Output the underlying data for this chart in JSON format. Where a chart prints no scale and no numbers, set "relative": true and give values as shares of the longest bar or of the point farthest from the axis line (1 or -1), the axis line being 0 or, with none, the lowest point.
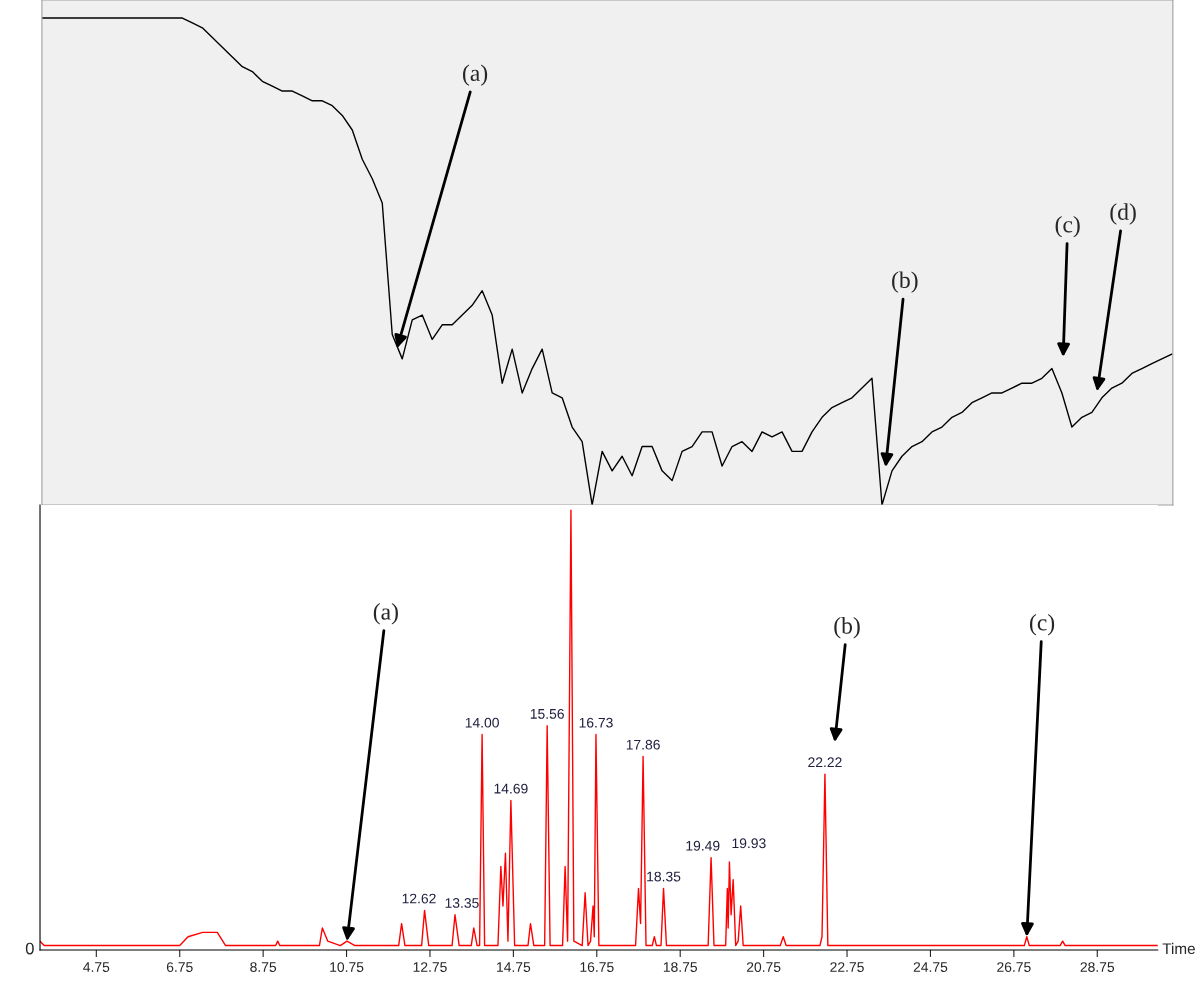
{
  "chart_data": [
    {
      "type": "line",
      "relative": true,
      "categories": [
        null,
        null,
        null,
        null,
        null,
        null,
        null,
        null,
        null,
        null,
        null,
        null,
        null,
        null,
        null,
        null,
        null,
        null,
        null,
        null,
        null,
        null,
        null,
        null,
        null,
        null,
        null,
        null,
        null,
        null,
        null,
        null,
        null,
        null,
        null,
        null,
        null,
        null,
        null,
        null,
        null,
        null,
        null,
        null,
        null,
        null,
        null,
        null,
        null,
        null,
        null,
        null,
        null,
        null,
        null,
        null,
        null,
        null,
        null,
        null,
        null,
        null,
        null,
        null,
        null,
        null,
        null,
        null,
        null,
        null,
        null,
        null,
        null,
        null,
        null,
        null,
        null,
        null,
        null,
        null,
        null,
        null,
        null,
        null,
        null,
        null,
        null,
        null,
        null,
        null,
        null,
        null,
        null,
        null,
        null,
        null,
        null,
        null,
        null,
        null,
        null,
        null,
        null,
        null,
        null,
        null,
        null,
        null,
        null,
        null,
        null,
        null,
        null,
        null
      ],
      "series": [
        {
          "color": "#000000",
          "values": [
            1.0,
            1.0,
            1.0,
            1.0,
            1.0,
            1.0,
            1.0,
            1.0,
            1.0,
            1.0,
            1.0,
            1.0,
            1.0,
            1.0,
            1.0,
            0.99,
            0.98,
            0.96,
            0.94,
            0.92,
            0.9,
            0.89,
            0.87,
            0.86,
            0.85,
            0.85,
            0.84,
            0.83,
            0.83,
            0.82,
            0.8,
            0.77,
            0.71,
            0.67,
            0.62,
            0.35,
            0.3,
            0.38,
            0.39,
            0.34,
            0.37,
            0.37,
            0.39,
            0.41,
            0.44,
            0.39,
            0.25,
            0.32,
            0.23,
            0.28,
            0.32,
            0.23,
            0.22,
            0.16,
            0.13,
            0.0,
            0.11,
            0.07,
            0.1,
            0.06,
            0.12,
            0.12,
            0.07,
            0.05,
            0.11,
            0.12,
            0.15,
            0.15,
            0.08,
            0.12,
            0.13,
            0.11,
            0.15,
            0.14,
            0.15,
            0.11,
            0.11,
            0.15,
            0.18,
            0.2,
            0.21,
            0.22,
            0.24,
            0.26,
            0.0,
            0.07,
            0.1,
            0.12,
            0.13,
            0.15,
            0.16,
            0.18,
            0.19,
            0.21,
            0.22,
            0.23,
            0.23,
            0.24,
            0.25,
            0.25,
            0.26,
            0.28,
            0.23,
            0.16,
            0.18,
            0.19,
            0.22,
            0.24,
            0.25,
            0.27,
            0.28,
            0.29,
            0.3,
            0.31
          ]
        }
      ],
      "annotations": [
        "(a)",
        "(b)",
        "(c)",
        "(d)"
      ]
    },
    {
      "type": "line",
      "relative": true,
      "xlim": [
        3.4,
        30.2
      ],
      "xlabel": "Time",
      "xticks": [
        4.75,
        6.75,
        8.75,
        10.75,
        12.75,
        14.75,
        16.75,
        18.75,
        20.75,
        22.75,
        24.75,
        26.75,
        28.75
      ],
      "series": [
        {
          "color": "#ff0000",
          "x": [
            3.4,
            3.5,
            6.75,
            6.95,
            7.3,
            7.65,
            7.85,
            9.05,
            9.1,
            9.15,
            10.1,
            10.17,
            10.3,
            10.6,
            10.76,
            10.95,
            12.0,
            12.07,
            12.15,
            12.55,
            12.62,
            12.72,
            13.28,
            13.35,
            13.45,
            13.74,
            13.8,
            13.88,
            13.94,
            14.0,
            14.06,
            14.38,
            14.45,
            14.5,
            14.56,
            14.62,
            14.69,
            14.78,
            15.1,
            15.16,
            15.24,
            15.5,
            15.56,
            15.63,
            15.93,
            15.99,
            16.05,
            16.13,
            16.2,
            16.4,
            16.47,
            16.54,
            16.6,
            16.66,
            16.69,
            16.73,
            16.8,
            17.68,
            17.75,
            17.8,
            17.86,
            17.93,
            18.08,
            18.13,
            18.18,
            18.29,
            18.35,
            18.42,
            19.42,
            19.49,
            19.56,
            19.84,
            19.88,
            19.9,
            19.93,
            19.97,
            20.02,
            20.08,
            20.14,
            20.2,
            20.26,
            21.15,
            21.22,
            21.29,
            22.1,
            22.15,
            22.22,
            22.29,
            27.0,
            27.06,
            27.12,
            27.86,
            27.92,
            27.98,
            30.2
          ],
          "values": [
            0.02,
            0.01,
            0.01,
            0.03,
            0.04,
            0.04,
            0.01,
            0.01,
            0.02,
            0.01,
            0.01,
            0.05,
            0.02,
            0.01,
            0.02,
            0.01,
            0.01,
            0.06,
            0.01,
            0.01,
            0.09,
            0.01,
            0.01,
            0.08,
            0.01,
            0.01,
            0.05,
            0.01,
            0.01,
            0.49,
            0.01,
            0.01,
            0.19,
            0.1,
            0.22,
            0.02,
            0.34,
            0.01,
            0.01,
            0.06,
            0.01,
            0.01,
            0.51,
            0.01,
            0.01,
            0.19,
            0.02,
            1.0,
            0.02,
            0.01,
            0.13,
            0.01,
            0.02,
            0.1,
            0.03,
            0.49,
            0.01,
            0.01,
            0.14,
            0.06,
            0.44,
            0.01,
            0.01,
            0.03,
            0.01,
            0.01,
            0.14,
            0.01,
            0.01,
            0.21,
            0.01,
            0.01,
            0.14,
            0.05,
            0.2,
            0.08,
            0.16,
            0.01,
            0.02,
            0.1,
            0.01,
            0.01,
            0.03,
            0.01,
            0.01,
            0.03,
            0.4,
            0.01,
            0.01,
            0.03,
            0.01,
            0.01,
            0.02,
            0.01,
            0.01
          ]
        }
      ],
      "annotations": [
        {
          "text": "12.62",
          "x": 12.62,
          "y": 0.09
        },
        {
          "text": "13.35",
          "x": 13.35,
          "y": 0.08
        },
        {
          "text": "14.00",
          "x": 14.0,
          "y": 0.49
        },
        {
          "text": "14.69",
          "x": 14.69,
          "y": 0.34
        },
        {
          "text": "15.56",
          "x": 15.56,
          "y": 0.51
        },
        {
          "text": "16.73",
          "x": 16.73,
          "y": 0.49
        },
        {
          "text": "17.86",
          "x": 17.86,
          "y": 0.44
        },
        {
          "text": "18.35",
          "x": 18.35,
          "y": 0.14
        },
        {
          "text": "19.49",
          "x": 19.49,
          "y": 0.21
        },
        {
          "text": "19.93",
          "x": 19.93,
          "y": 0.2
        },
        {
          "text": "22.22",
          "x": 22.22,
          "y": 0.4
        },
        {
          "text": "(a)",
          "x": 10.76,
          "y": 0.02
        },
        {
          "text": "(c)",
          "x": 27.06,
          "y": 0.03
        },
        "0",
        "(b)"
      ]
    }
  ]
}
